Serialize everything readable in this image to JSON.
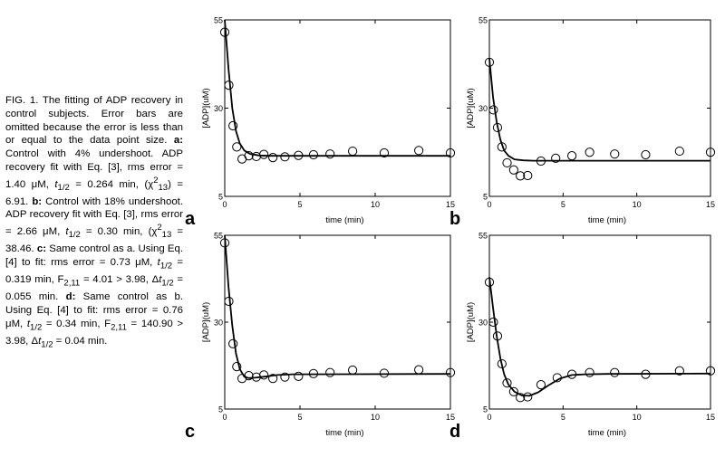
{
  "caption": {
    "fig_label": "FIG. 1.",
    "intro": "The fitting of ADP recovery in control subjects. Error bars are omitted because the error is less than or equal to the data point size.",
    "a_tag": "a:",
    "a_text_1": "Control with 4% undershoot. ADP recovery fit with Eq. [3], rms error = 1.40 μM,",
    "a_text_2": "= 0.264 min, (",
    "a_text_3": "= 6.91.",
    "b_tag": "b:",
    "b_text_1": "Control with 18% undershoot. ADP recovery fit with Eq. [3], rms error = 2.66 μM,",
    "b_text_2": "= 0.30 min, (",
    "b_text_3": "= 38.46.",
    "c_tag": "c:",
    "c_text_1": "Same control as a. Using Eq. [4] to fit: rms error = 0.73 μM,",
    "c_text_2": "= 0.319 min, F",
    "c_text_3": "= 4.01 > 3.98, Δ",
    "c_text_4": "= 0.055 min.",
    "d_tag": "d:",
    "d_text_1": "Same control as b. Using Eq. [4] to fit: rms error = 0.76 μM,",
    "d_text_2": "= 0.34 min, F",
    "d_text_3": "= 140.90 > 3.98, Δ",
    "d_text_4": "= 0.04 min.",
    "t_sym": "t",
    "half_sub": "1/2",
    "chi_sym": "χ",
    "chi_sup": "2",
    "chi_sub": "13",
    "close_paren": ")",
    "f_sub": "2,11"
  },
  "chart_data": [
    {
      "panel": "a",
      "type": "scatter",
      "xlabel": "time (min)",
      "ylabel": "[ADP](uM)",
      "xlim": [
        0,
        15
      ],
      "ylim": [
        5,
        55
      ],
      "x_ticks": [
        0,
        5,
        10,
        15
      ],
      "y_ticks": [
        5,
        30,
        55
      ],
      "points": [
        [
          0,
          51.5
        ],
        [
          0.27,
          36.5
        ],
        [
          0.55,
          25
        ],
        [
          0.8,
          19
        ],
        [
          1.15,
          15.6
        ],
        [
          1.6,
          16.5
        ],
        [
          2.1,
          16.3
        ],
        [
          2.6,
          16.9
        ],
        [
          3.2,
          16
        ],
        [
          4.0,
          16.2
        ],
        [
          4.9,
          16.6
        ],
        [
          5.9,
          16.8
        ],
        [
          7.0,
          17
        ],
        [
          8.5,
          17.8
        ],
        [
          10.6,
          17.3
        ],
        [
          12.9,
          18
        ],
        [
          15.0,
          17.3
        ]
      ],
      "fit": [
        [
          0,
          55
        ],
        [
          0.25,
          41
        ],
        [
          0.5,
          30
        ],
        [
          0.75,
          23.5
        ],
        [
          1.0,
          20
        ],
        [
          1.3,
          18
        ],
        [
          1.7,
          17
        ],
        [
          2.3,
          16.6
        ],
        [
          3,
          16.5
        ],
        [
          15,
          16.5
        ]
      ]
    },
    {
      "panel": "b",
      "type": "scatter",
      "xlabel": "time (min)",
      "ylabel": "[ADP](uM)",
      "xlim": [
        0,
        15
      ],
      "ylim": [
        5,
        55
      ],
      "x_ticks": [
        0,
        5,
        10,
        15
      ],
      "y_ticks": [
        5,
        30,
        55
      ],
      "points": [
        [
          0,
          43
        ],
        [
          0.27,
          29.5
        ],
        [
          0.55,
          24.5
        ],
        [
          0.85,
          19
        ],
        [
          1.2,
          14.5
        ],
        [
          1.65,
          12.5
        ],
        [
          2.1,
          10.8
        ],
        [
          2.6,
          10.9
        ],
        [
          3.5,
          15
        ],
        [
          4.5,
          15.8
        ],
        [
          5.6,
          16.5
        ],
        [
          6.8,
          17.5
        ],
        [
          8.5,
          17
        ],
        [
          10.6,
          16.8
        ],
        [
          12.9,
          17.8
        ],
        [
          15.0,
          17.5
        ]
      ],
      "fit": [
        [
          0,
          44
        ],
        [
          0.25,
          33
        ],
        [
          0.5,
          26
        ],
        [
          0.75,
          21
        ],
        [
          1.0,
          18
        ],
        [
          1.3,
          16.5
        ],
        [
          1.7,
          15.5
        ],
        [
          2.3,
          15.2
        ],
        [
          3,
          15.1
        ],
        [
          15,
          15.1
        ]
      ]
    },
    {
      "panel": "c",
      "type": "scatter",
      "xlabel": "time (min)",
      "ylabel": "[ADP](uM)",
      "xlim": [
        0,
        15
      ],
      "ylim": [
        5,
        55
      ],
      "x_ticks": [
        0,
        5,
        10,
        15
      ],
      "y_ticks": [
        5,
        30,
        55
      ],
      "points": [
        [
          0,
          52.8
        ],
        [
          0.27,
          36
        ],
        [
          0.55,
          23.8
        ],
        [
          0.8,
          17.2
        ],
        [
          1.15,
          13.8
        ],
        [
          1.6,
          14.6
        ],
        [
          2.1,
          14.2
        ],
        [
          2.6,
          14.8
        ],
        [
          3.2,
          13.8
        ],
        [
          4.0,
          14.2
        ],
        [
          4.9,
          14.4
        ],
        [
          5.9,
          15.2
        ],
        [
          7.0,
          15.5
        ],
        [
          8.5,
          16.2
        ],
        [
          10.6,
          15.3
        ],
        [
          12.9,
          16.3
        ],
        [
          15.0,
          15.5
        ]
      ],
      "fit": [
        [
          0,
          55
        ],
        [
          0.25,
          40
        ],
        [
          0.5,
          29
        ],
        [
          0.75,
          21
        ],
        [
          1.0,
          16.5
        ],
        [
          1.3,
          14.3
        ],
        [
          1.6,
          13.9
        ],
        [
          2.0,
          14.0
        ],
        [
          2.6,
          14.3
        ],
        [
          3.5,
          14.8
        ],
        [
          4.5,
          15.0
        ],
        [
          15,
          15.1
        ]
      ]
    },
    {
      "panel": "d",
      "type": "scatter",
      "xlabel": "time (min)",
      "ylabel": "[ADP](uM)",
      "xlim": [
        0,
        15
      ],
      "ylim": [
        5,
        55
      ],
      "x_ticks": [
        0,
        5,
        10,
        15
      ],
      "y_ticks": [
        5,
        30,
        55
      ],
      "points": [
        [
          0,
          41.5
        ],
        [
          0.27,
          30
        ],
        [
          0.55,
          26
        ],
        [
          0.85,
          18
        ],
        [
          1.2,
          12.5
        ],
        [
          1.65,
          10
        ],
        [
          2.1,
          8.3
        ],
        [
          2.6,
          8.5
        ],
        [
          3.5,
          12
        ],
        [
          4.6,
          14
        ],
        [
          5.6,
          15
        ],
        [
          6.8,
          15.5
        ],
        [
          8.5,
          15.5
        ],
        [
          10.6,
          15
        ],
        [
          12.9,
          16
        ],
        [
          15.0,
          16
        ]
      ],
      "fit": [
        [
          0,
          43
        ],
        [
          0.25,
          34
        ],
        [
          0.5,
          26
        ],
        [
          0.75,
          19.5
        ],
        [
          1.0,
          15
        ],
        [
          1.3,
          12
        ],
        [
          1.7,
          10
        ],
        [
          2.2,
          8.9
        ],
        [
          2.7,
          8.8
        ],
        [
          3.3,
          9.8
        ],
        [
          4.0,
          11.8
        ],
        [
          4.8,
          13.8
        ],
        [
          5.6,
          14.8
        ],
        [
          6.5,
          15.0
        ],
        [
          8,
          15.1
        ],
        [
          15,
          15.2
        ]
      ]
    }
  ]
}
